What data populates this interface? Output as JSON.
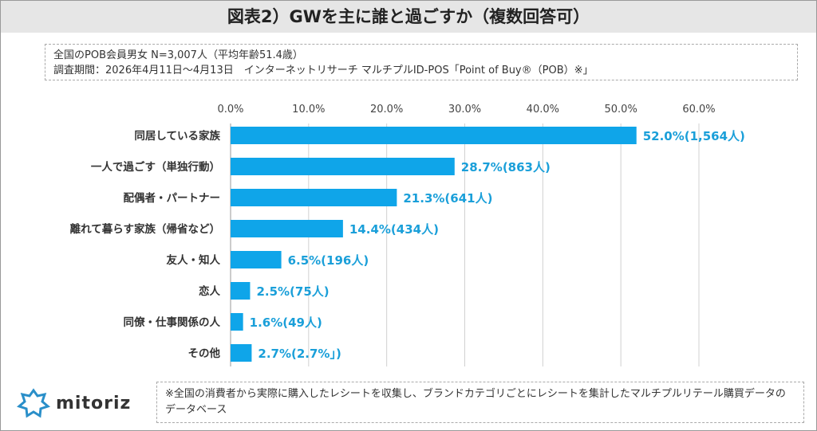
{
  "title": "図表2）GWを主に誰と過ごすか（複数回答可）",
  "info": {
    "line1": "全国のPOB会員男女 N=3,007人（平均年齢51.4歳）",
    "line2": "調査期間：2026年4月11日～4月13日　インターネットリサーチ マルチプルID-POS「Point of Buy®（POB）※」"
  },
  "note": "※全国の消費者から実際に購入したレシートを収集し、ブランドカテゴリごとにレシートを集計したマルチプルリテール購買データのデータベース",
  "logo": {
    "text": "mitoriz"
  },
  "colors": {
    "bar": "#0fa5e9",
    "label": "#1a9fd9",
    "grid": "#d0d0d0"
  },
  "chart_data": {
    "type": "bar",
    "orientation": "horizontal",
    "categories": [
      "同居している家族",
      "一人で過ごす（単独行動）",
      "配偶者・パートナー",
      "離れて暮らす家族（帰省など）",
      "友人・知人",
      "恋人",
      "同僚・仕事関係の人",
      "その他"
    ],
    "values": [
      52.0,
      28.7,
      21.3,
      14.4,
      6.5,
      2.5,
      1.6,
      2.7
    ],
    "data_labels": [
      "52.0%(1,564人)",
      "28.7%(863人)",
      "21.3%(641人)",
      "14.4%(434人)",
      "6.5%(196人)",
      "2.5%(75人)",
      "1.6%(49人)",
      "2.7%(2.7%｣)"
    ],
    "xlim": [
      0,
      60
    ],
    "ticks": [
      "0.0%",
      "10.0%",
      "20.0%",
      "30.0%",
      "40.0%",
      "50.0%",
      "60.0%"
    ],
    "tick_values": [
      0,
      10,
      20,
      30,
      40,
      50,
      60
    ],
    "grid": true,
    "xaxis_position": "top"
  }
}
